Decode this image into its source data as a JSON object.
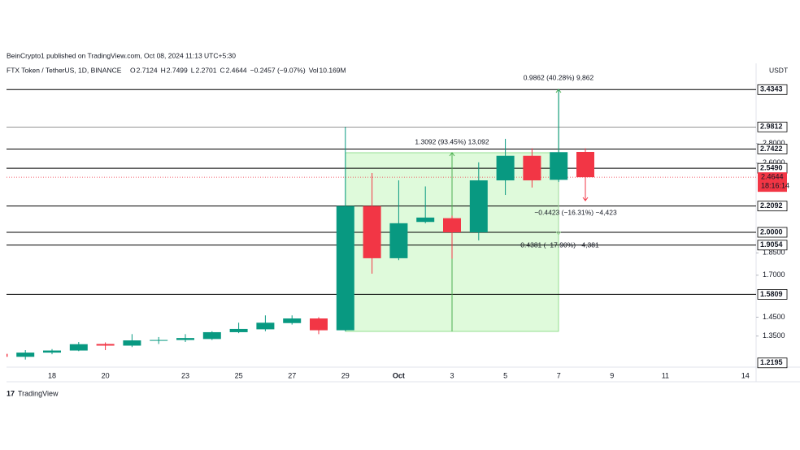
{
  "header": {
    "published": "BeinCrypto1 published on TradingView.com, Oct 08, 2024 11:13 UTC+5:30",
    "symbol": "FTX Token / TetherUS, 1D, BINANCE",
    "ohlc": [
      {
        "label": "O",
        "value": "2.7124"
      },
      {
        "label": "H",
        "value": "2.7499"
      },
      {
        "label": "L",
        "value": "2.2701"
      },
      {
        "label": "C",
        "value": "2.4644"
      }
    ],
    "change": "−0.2457 (−9.07%)",
    "vol_label": "Vol",
    "vol": "10.169M",
    "currency": "USDT"
  },
  "footer": {
    "brand": "TradingView"
  },
  "chart_data": {
    "type": "candlestick",
    "log_scale": true,
    "categories": [
      null,
      null,
      "18",
      null,
      "20",
      null,
      null,
      "23",
      null,
      "25",
      null,
      "27",
      null,
      "29",
      null,
      "Oct",
      null,
      "3",
      null,
      "5",
      null,
      "7",
      null,
      "9",
      null,
      "11",
      null,
      null,
      "14"
    ],
    "up_color": "#089981",
    "down_color": "#f23645",
    "open": [
      1.262,
      1.248,
      1.268,
      1.278,
      1.31,
      1.302,
      1.328,
      1.33,
      1.335,
      1.37,
      1.385,
      1.418,
      1.443,
      1.38,
      2.2092,
      1.813,
      2.08,
      2.11,
      2.0,
      2.435,
      2.673,
      2.44,
      2.7124,
      null,
      null,
      null,
      null,
      null,
      null
    ],
    "high": [
      1.27,
      1.28,
      1.285,
      1.32,
      1.318,
      1.36,
      1.345,
      1.36,
      1.375,
      1.42,
      1.46,
      1.46,
      1.45,
      2.9812,
      2.504,
      2.435,
      2.38,
      2.13,
      2.607,
      2.85,
      2.75,
      3.4343,
      2.7499,
      null,
      null,
      null,
      null,
      null,
      null
    ],
    "low": [
      1.24,
      1.235,
      1.26,
      1.275,
      1.28,
      1.295,
      1.31,
      1.32,
      1.33,
      1.365,
      1.375,
      1.41,
      1.36,
      1.375,
      1.71,
      1.8,
      2.07,
      1.81,
      1.94,
      2.304,
      2.37,
      2.42,
      2.2701,
      null,
      null,
      null,
      null,
      null,
      null
    ],
    "close": [
      1.248,
      1.268,
      1.278,
      1.309,
      1.302,
      1.328,
      1.33,
      1.34,
      1.37,
      1.387,
      1.42,
      1.443,
      1.38,
      2.2092,
      1.813,
      2.07,
      2.115,
      2.0,
      2.435,
      2.673,
      2.435,
      2.7101,
      2.4644,
      null,
      null,
      null,
      null,
      null,
      null
    ],
    "ylim": [
      1.2,
      3.6
    ],
    "yticks": [
      {
        "value": 2.8,
        "label": "2.8000"
      },
      {
        "value": 2.6,
        "label": "2.6000"
      },
      {
        "value": 1.85,
        "label": "1.8500"
      },
      {
        "value": 1.7,
        "label": "1.7000"
      },
      {
        "value": 1.45,
        "label": "1.4500"
      },
      {
        "value": 1.35,
        "label": "1.3500"
      }
    ],
    "levels": [
      {
        "value": 3.4343,
        "label": "3.4343"
      },
      {
        "value": 2.9812,
        "label": "2.9812"
      },
      {
        "value": 2.7422,
        "label": "2.7422"
      },
      {
        "value": 2.549,
        "label": "2.5490"
      },
      {
        "value": 2.2092,
        "label": "2.2092"
      },
      {
        "value": 2,
        "label": "2.0000"
      },
      {
        "value": 1.9054,
        "label": "1.9054"
      },
      {
        "value": 1.5809,
        "label": "1.5809"
      },
      {
        "value": 1.2195,
        "label": "1.2195"
      }
    ],
    "last_price": {
      "value": 2.4644,
      "label": "2.4644",
      "countdown": "18:16:14"
    },
    "annotations": [
      "1.3092 (93.45%) 13,092",
      "0.9862 (40.28%) 9,862",
      "−0.4423 (−16.31%) −4,423",
      "−0.4381 (−17.90%) −4,381"
    ]
  }
}
